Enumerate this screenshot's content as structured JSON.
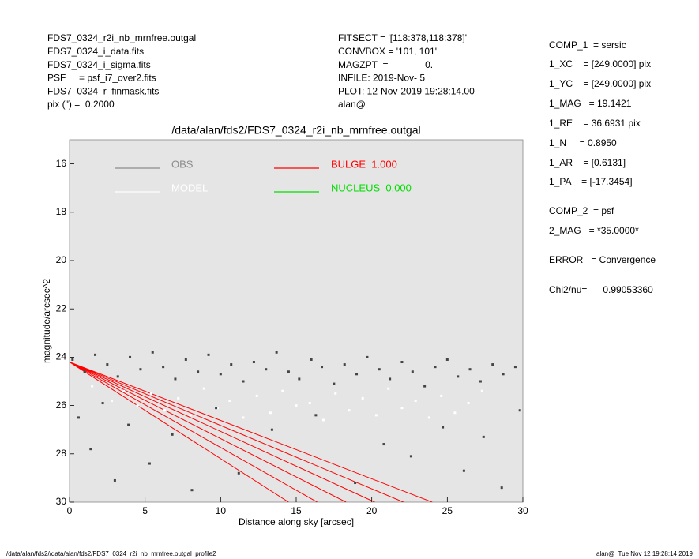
{
  "header": {
    "left": [
      "FDS7_0324_r2i_nb_mrnfree.outgal",
      "FDS7_0324_i_data.fits",
      "FDS7_0324_i_sigma.fits",
      "PSF     = psf_i7_over2.fits",
      "FDS7_0324_r_finmask.fits",
      "pix (\") =  0.2000"
    ],
    "middle": [
      "FITSECT = '[118:378,118:378]'",
      "CONVBOX = '101, 101'",
      "MAGZPT  =              0.",
      "INFILE: 2019-Nov- 5",
      "PLOT: 12-Nov-2019 19:28:14.00",
      "alan@"
    ],
    "right": [
      "COMP_1  = sersic",
      "1_XC    = [249.0000] pix",
      "1_YC    = [249.0000] pix",
      "1_MAG   = 19.1421",
      "1_RE    = 36.6931 pix",
      "1_N     = 0.8950",
      "1_AR    = [0.6131]",
      "1_PA    = [-17.3454]",
      "COMP_2  = psf",
      "2_MAG   = *35.0000*",
      "ERROR   = Convergence",
      "Chi2/nu=      0.99053360"
    ]
  },
  "footer": {
    "left": "/data/alan/fds2//data/alan/fds2/FDS7_0324_r2i_nb_mrnfree.outgal_profile2",
    "right": "alan@  Tue Nov 12 19:28:14 2019"
  },
  "chart_data": {
    "type": "scatter",
    "title": "/data/alan/fds2/FDS7_0324_r2i_nb_mrnfree.outgal",
    "xlabel": "Distance along sky [arcsec]",
    "ylabel": "magnitude/arcsec^2",
    "xlim": [
      0,
      30
    ],
    "ylim": [
      30,
      15
    ],
    "xticks": [
      0,
      5,
      10,
      15,
      20,
      25,
      30
    ],
    "yticks": [
      16,
      18,
      20,
      22,
      24,
      26,
      28,
      30
    ],
    "background": "#e5e5e5",
    "series": [
      {
        "name": "OBS",
        "type": "scatter",
        "color": "#444444",
        "legend_color": "#8c8c8c",
        "x": [
          0.2,
          1.0,
          1.7,
          2.5,
          3.2,
          4.0,
          4.7,
          5.5,
          6.2,
          7.0,
          7.7,
          8.5,
          9.2,
          10.0,
          10.7,
          11.5,
          12.2,
          13.0,
          13.7,
          14.5,
          15.2,
          16.0,
          16.7,
          17.5,
          18.2,
          19.0,
          19.7,
          20.5,
          21.2,
          22.0,
          22.7,
          23.5,
          24.2,
          25.0,
          25.7,
          26.5,
          27.2,
          28.0,
          28.7,
          29.5,
          0.6,
          1.4,
          2.2,
          3.0,
          3.9,
          5.3,
          6.8,
          8.1,
          9.7,
          11.2,
          13.4,
          16.3,
          18.9,
          20.8,
          22.6,
          24.7,
          26.1,
          27.4,
          28.6,
          29.8
        ],
        "values": [
          24.1,
          24.6,
          23.9,
          24.3,
          24.8,
          24.0,
          24.5,
          23.8,
          24.4,
          24.9,
          24.1,
          24.6,
          23.9,
          24.7,
          24.3,
          25.0,
          24.2,
          24.5,
          23.8,
          24.6,
          24.9,
          24.1,
          24.4,
          25.1,
          24.3,
          24.7,
          24.0,
          24.5,
          24.9,
          24.2,
          24.6,
          25.2,
          24.4,
          24.1,
          24.8,
          24.5,
          25.0,
          24.3,
          24.7,
          24.4,
          26.5,
          27.8,
          25.9,
          29.1,
          26.8,
          28.4,
          27.2,
          29.5,
          26.1,
          28.8,
          27.0,
          26.4,
          29.2,
          27.6,
          28.1,
          26.9,
          28.7,
          27.3,
          29.4,
          26.2
        ]
      },
      {
        "name": "MODEL",
        "type": "scatter",
        "color": "#ffffff",
        "legend_color": "#ffffff",
        "x": [
          1.5,
          2.8,
          3.6,
          4.5,
          5.4,
          6.3,
          7.2,
          8.0,
          8.9,
          9.8,
          10.6,
          11.5,
          12.4,
          13.3,
          14.1,
          15.0,
          15.9,
          16.8,
          17.6,
          18.5,
          19.4,
          20.3,
          21.1,
          22.0,
          22.9,
          23.8,
          24.6,
          25.5,
          26.4,
          27.3
        ],
        "values": [
          25.2,
          25.8,
          25.4,
          26.0,
          25.5,
          26.2,
          25.7,
          26.4,
          25.3,
          26.1,
          25.8,
          26.5,
          25.6,
          26.3,
          25.4,
          26.0,
          25.9,
          26.6,
          25.5,
          26.2,
          25.7,
          26.4,
          25.3,
          26.1,
          25.8,
          26.5,
          25.6,
          26.3,
          25.9,
          25.4
        ]
      },
      {
        "name": "BULGE  1.000",
        "type": "line",
        "color": "#ff0000",
        "legend_color": "#ff0000",
        "x": [
          0,
          14.5,
          null,
          0,
          16.4,
          null,
          0,
          18.3,
          null,
          0,
          20.2,
          null,
          0,
          22.1,
          null,
          0,
          24.0
        ],
        "values": [
          24.2,
          30,
          null,
          24.2,
          30,
          null,
          24.2,
          30,
          null,
          24.2,
          30,
          null,
          24.2,
          30,
          null,
          24.2,
          30
        ]
      },
      {
        "name": "NUCLEUS  0.000",
        "type": "line",
        "color": "#00dd00",
        "legend_color": "#00dd00",
        "x": [],
        "values": []
      }
    ]
  }
}
